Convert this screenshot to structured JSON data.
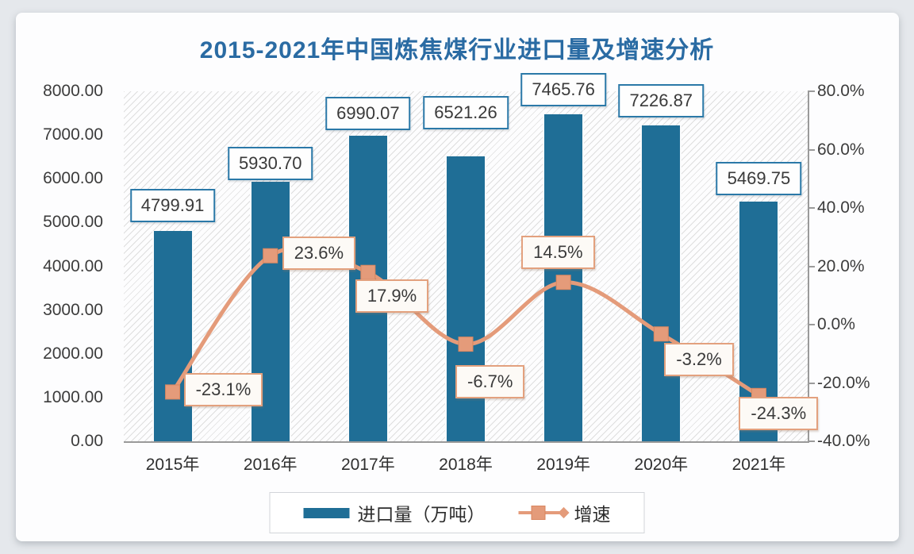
{
  "title": "2015-2021年中国炼焦煤行业进口量及增速分析",
  "chart_data": {
    "type": "combo-bar-line",
    "categories": [
      "2015年",
      "2016年",
      "2017年",
      "2018年",
      "2019年",
      "2020年",
      "2021年"
    ],
    "series": [
      {
        "name": "进口量（万吨）",
        "chart_type": "bar",
        "axis": "left",
        "color": "#1f6e96",
        "values": [
          4799.91,
          5930.7,
          6990.07,
          6521.26,
          7465.76,
          7226.87,
          5469.75
        ],
        "data_labels": [
          "4799.91",
          "5930.70",
          "6990.07",
          "6521.26",
          "7465.76",
          "7226.87",
          "5469.75"
        ]
      },
      {
        "name": "增速",
        "chart_type": "line",
        "axis": "right",
        "color": "#e49b7a",
        "values": [
          -23.1,
          23.6,
          17.9,
          -6.7,
          14.5,
          -3.2,
          -24.3
        ],
        "data_labels": [
          "-23.1%",
          "23.6%",
          "17.9%",
          "-6.7%",
          "14.5%",
          "-3.2%",
          "-24.3%"
        ]
      }
    ],
    "left_axis": {
      "min": 0,
      "max": 8000,
      "step": 1000,
      "tick_labels": [
        "0.00",
        "1000.00",
        "2000.00",
        "3000.00",
        "4000.00",
        "5000.00",
        "6000.00",
        "7000.00",
        "8000.00"
      ]
    },
    "right_axis": {
      "min": -40,
      "max": 80,
      "step": 20,
      "tick_labels": [
        "-40.0%",
        "-20.0%",
        "0.0%",
        "20.0%",
        "40.0%",
        "60.0%",
        "80.0%"
      ]
    },
    "legend": {
      "position": "bottom",
      "items": [
        "进口量（万吨）",
        "增速"
      ]
    },
    "plot_background": "diagonal-hatch",
    "grid": false
  },
  "colors": {
    "page_bg": "#e5e8ec",
    "card_bg": "#fdfdfe",
    "title": "#2a6ba3",
    "bar": "#1f6e96",
    "line": "#e49b7a",
    "marker_border": "#d9865f",
    "bar_label_border": "#2b79a8",
    "line_label_border": "#e3a17e",
    "line_label_bg": "#fdfaf6",
    "axis_text": "#3c3c3c",
    "axis_line": "#9a9a9a"
  }
}
